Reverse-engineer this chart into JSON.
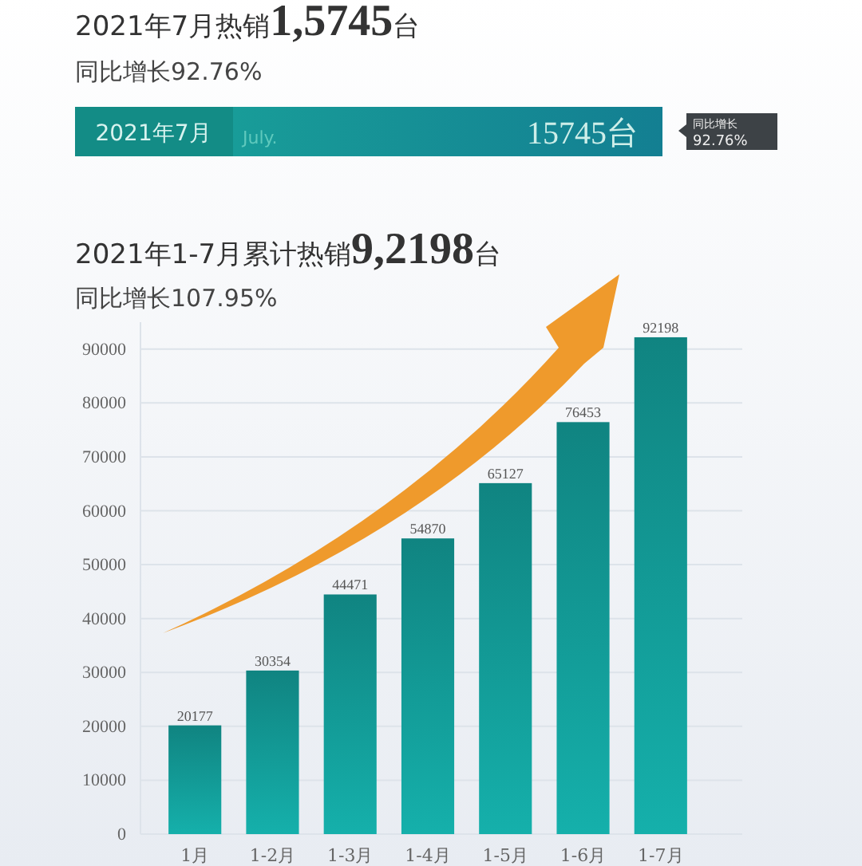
{
  "chart_data": [
    {
      "type": "other",
      "title": "2021年7月热销1,5745台",
      "subtitle": "同比增长92.76%",
      "annotations": [
        "2021年7月",
        "July.",
        "15745台",
        "同比增长",
        "92.76%"
      ]
    },
    {
      "type": "bar",
      "title": "2021年1-7月累计热销9,2198台",
      "subtitle": "同比增长107.95%",
      "categories": [
        "1月",
        "1-2月",
        "1-3月",
        "1-4月",
        "1-5月",
        "1-6月",
        "1-7月"
      ],
      "values": [
        20177,
        30354,
        44471,
        54870,
        65127,
        76453,
        92198
      ],
      "color": "#139e9a",
      "data_labels": true,
      "grid": "y",
      "ylim": [
        0,
        95000
      ],
      "yticks": [
        0,
        10000,
        20000,
        30000,
        40000,
        50000,
        60000,
        70000,
        80000,
        90000
      ]
    }
  ]
}
